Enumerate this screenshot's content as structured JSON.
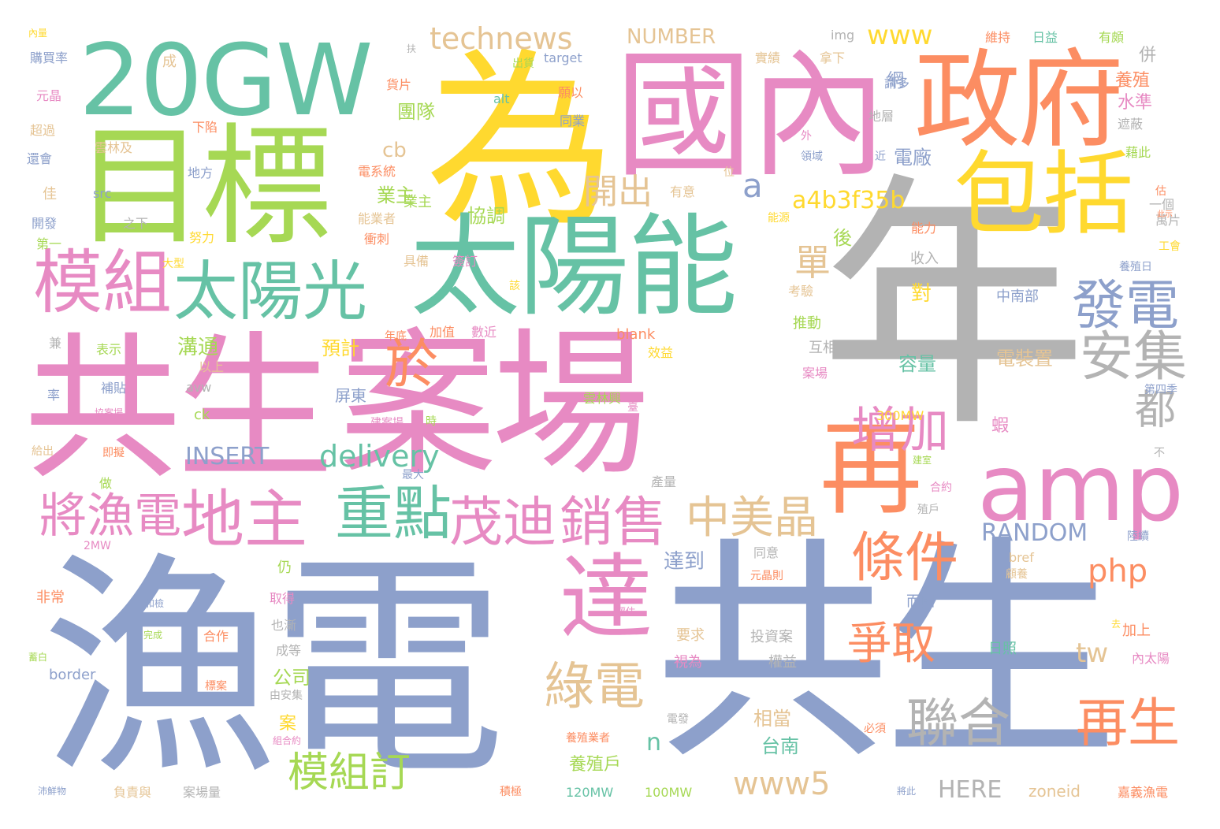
{
  "wordcloud": {
    "words": [
      "漁電",
      "共生",
      "案場",
      "共生",
      "年",
      "為",
      "國內",
      "目標",
      "政府",
      "20GW",
      "太陽能",
      "包括",
      "太陽光",
      "模組",
      "amp",
      "再",
      "發電",
      "於",
      "達",
      "重點",
      "茂迪",
      "銷售",
      "地主",
      "將漁電",
      "條件",
      "增加",
      "安集",
      "都",
      "中美晶",
      "綠電",
      "聯合",
      "再生",
      "爭取",
      "模組訂",
      "www5",
      "technews",
      "www",
      "開出",
      "單",
      "a",
      "a4b3f35b",
      "delivery",
      "INSERT",
      "RANDOM",
      "php",
      "tw",
      "NUMBER",
      "cb",
      "n",
      "HERE",
      "zoneid",
      "img",
      "target",
      "alt",
      "src",
      "border",
      "avw",
      "ck",
      "blank",
      "bref",
      "300MW",
      "120MW",
      "100MW",
      "2MW",
      "網",
      "團隊",
      "電廠",
      "協調",
      "業主",
      "溝通",
      "預計",
      "後",
      "對",
      "容量",
      "電裝置",
      "達到",
      "仍",
      "公司",
      "案",
      "相當",
      "台南",
      "養殖戶",
      "水準",
      "養殖",
      "併",
      "蝦",
      "屏東",
      "互相",
      "推動",
      "收入",
      "中南部",
      "日照",
      "而國",
      "內太陽",
      "加上",
      "投資案",
      "權益",
      "要求",
      "視為",
      "也漸",
      "成等",
      "取得",
      "非常",
      "合作",
      "補貼",
      "表示",
      "以上",
      "效益",
      "加值",
      "數近",
      "年底",
      "維持",
      "日益",
      "有頗",
      "拿下",
      "實績",
      "請多",
      "出貨",
      "貨片",
      "成",
      "購買率",
      "元晶",
      "超過",
      "還會",
      "佳",
      "開發",
      "第一",
      "下陷",
      "雲林及",
      "地方",
      "能業者",
      "努力",
      "大型",
      "衝刺",
      "具備",
      "簽訂",
      "該",
      "有意",
      "能源",
      "能力",
      "考驗",
      "地層",
      "外",
      "領域",
      "近",
      "電系統",
      "之下",
      "位",
      "同業",
      "願以",
      "遮蔽",
      "藉此",
      "估",
      "一個",
      "萬片",
      "工會",
      "養殖日",
      "第四季",
      "雲林興",
      "建案場",
      "即擬",
      "做",
      "最大",
      "產量",
      "合約",
      "殖戶",
      "同意",
      "元晶則",
      "陸續",
      "顧養",
      "不",
      "去",
      "嘉義漁電",
      "養殖業者",
      "必須",
      "電發",
      "由安集",
      "組合約",
      "標案",
      "完成",
      "負責與",
      "案場量",
      "積極",
      "將此",
      "和檢",
      "評估",
      "率",
      "兼",
      "給出",
      "蓄白",
      "此示",
      "沛鮮物",
      "內量",
      "扶",
      "時",
      "臺",
      "協案場",
      "建室",
      "案場",
      "業主"
    ]
  }
}
